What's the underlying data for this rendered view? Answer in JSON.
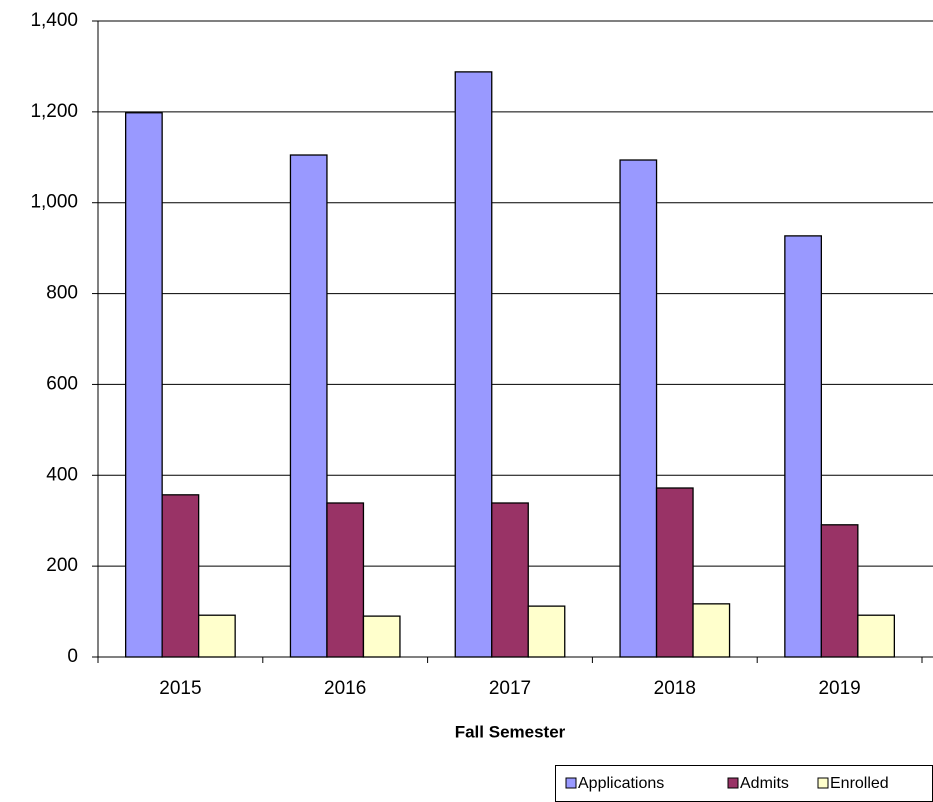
{
  "chart_data": {
    "type": "bar",
    "xlabel": "Fall Semester",
    "categories": [
      "2015",
      "2016",
      "2017",
      "2018",
      "2019"
    ],
    "series": [
      {
        "name": "Applications",
        "color": "#9999ff",
        "values": [
          1198,
          1105,
          1288,
          1094,
          927
        ]
      },
      {
        "name": "Admits",
        "color": "#993366",
        "values": [
          357,
          339,
          339,
          372,
          291
        ]
      },
      {
        "name": "Enrolled",
        "color": "#ffffcc",
        "values": [
          92,
          90,
          112,
          117,
          92
        ]
      }
    ],
    "ylim": [
      0,
      1400
    ],
    "yticks": [
      0,
      200,
      400,
      600,
      800,
      {
        "value": 1000,
        "label": "1,000"
      },
      {
        "value": 1200,
        "label": "1,200"
      },
      {
        "value": 1400,
        "label": "1,400"
      }
    ],
    "grid": true,
    "legend": "bottom-right"
  }
}
